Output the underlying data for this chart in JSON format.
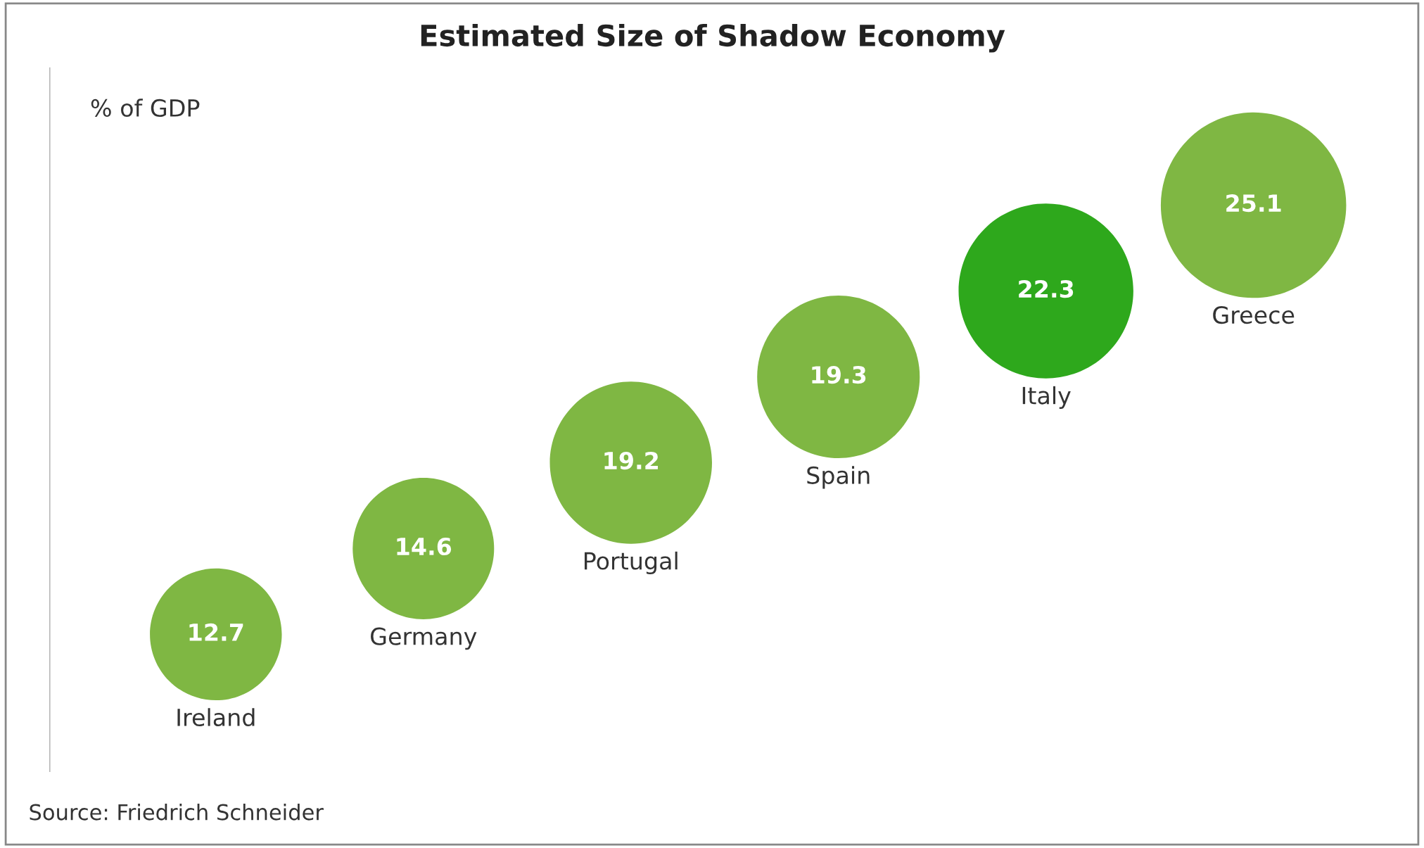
{
  "chart_data": {
    "type": "other",
    "title": "Estimated Size of Shadow Economy",
    "ylabel": "% of GDP",
    "categories": [
      "Ireland",
      "Germany",
      "Portugal",
      "Spain",
      "Italy",
      "Greece"
    ],
    "values": [
      12.7,
      14.6,
      19.2,
      19.3,
      22.3,
      25.1
    ],
    "colors": [
      "#7fb743",
      "#7fb743",
      "#7fb743",
      "#7fb743",
      "#2ea81c",
      "#7fb743"
    ],
    "data_labels": true,
    "annotations": [
      "Source: Friedrich Schneider"
    ]
  }
}
